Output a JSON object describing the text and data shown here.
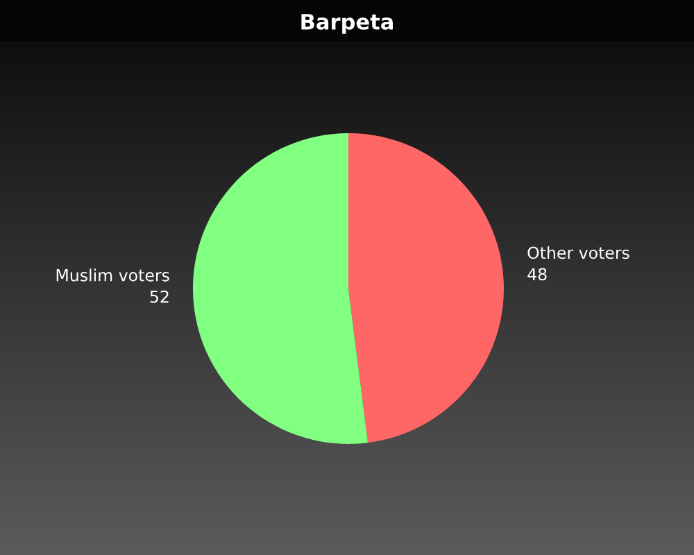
{
  "chart_data": {
    "type": "pie",
    "title": "Barpeta",
    "categories": [
      "Other voters",
      "Muslim voters"
    ],
    "values": [
      48,
      52
    ],
    "colors": [
      "#ff6666",
      "#80ff80"
    ],
    "data_labels": true,
    "legend": false
  }
}
